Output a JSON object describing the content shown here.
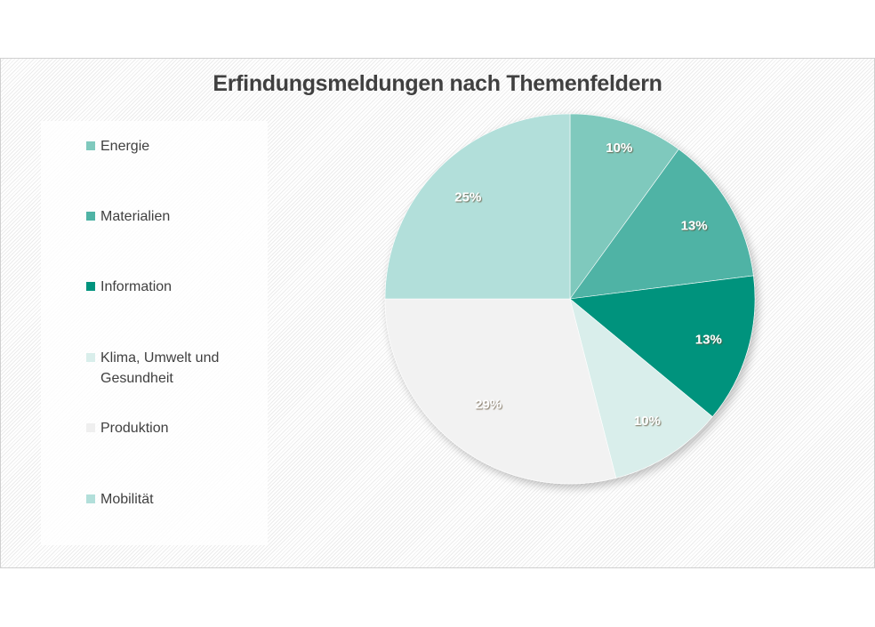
{
  "chart_data": {
    "type": "pie",
    "title": "Erfindungsmeldungen nach Themenfeldern",
    "categories": [
      "Energie",
      "Materialien",
      "Information",
      "Klima, Umwelt und Gesundheit",
      "Produktion",
      "Mobilität"
    ],
    "values": [
      10,
      13,
      13,
      10,
      29,
      25
    ],
    "unit": "%",
    "labels": [
      "10%",
      "13%",
      "13%",
      "10%",
      "29%",
      "25%"
    ],
    "colors": [
      "#7fc9bd",
      "#4fb3a5",
      "#00937d",
      "#d9eeeb",
      "#f2f2f2",
      "#b2dfda"
    ],
    "start_angle": "12 o'clock",
    "direction": "clockwise",
    "legend_position": "left",
    "xlabel": "",
    "ylabel": ""
  },
  "title": "Erfindungsmeldungen nach Themenfeldern",
  "legend": {
    "items": [
      {
        "label": "Energie",
        "color": "#7fc9bd"
      },
      {
        "label": "Materialien",
        "color": "#4fb3a5"
      },
      {
        "label": "Information",
        "color": "#00937d"
      },
      {
        "label": "Klima, Umwelt und Gesundheit",
        "color": "#d9eeeb"
      },
      {
        "label": "Produktion",
        "color": "#f2f2f2"
      },
      {
        "label": "Mobilität",
        "color": "#b2dfda"
      }
    ]
  },
  "slices": [
    {
      "label": "10%"
    },
    {
      "label": "13%"
    },
    {
      "label": "13%"
    },
    {
      "label": "10%"
    },
    {
      "label": "29%"
    },
    {
      "label": "25%"
    }
  ]
}
